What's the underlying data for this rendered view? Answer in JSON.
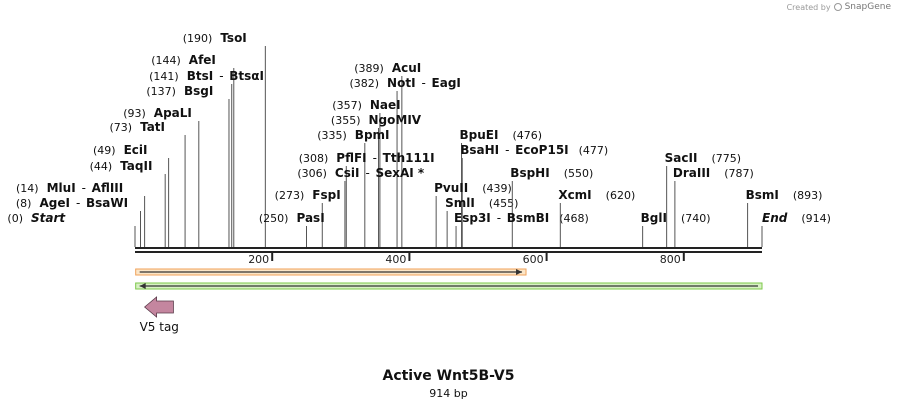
{
  "credit": {
    "prefix": "Created by",
    "brand": "SnapGene"
  },
  "plasmid": {
    "name": "Active Wnt5B-V5",
    "length_label": "914 bp",
    "length": 914
  },
  "sites": [
    {
      "pos": 0,
      "pos_label": "(0)",
      "name": "Start",
      "name2": "",
      "italic": true
    },
    {
      "pos": 8,
      "pos_label": "(8)",
      "name": "AgeI",
      "name2": "BsaWI"
    },
    {
      "pos": 14,
      "pos_label": "(14)",
      "name": "MluI",
      "name2": "AflIII"
    },
    {
      "pos": 44,
      "pos_label": "(44)",
      "name": "TaqII",
      "name2": ""
    },
    {
      "pos": 49,
      "pos_label": "(49)",
      "name": "EciI",
      "name2": ""
    },
    {
      "pos": 73,
      "pos_label": "(73)",
      "name": "TatI",
      "name2": ""
    },
    {
      "pos": 93,
      "pos_label": "(93)",
      "name": "ApaLI",
      "name2": ""
    },
    {
      "pos": 137,
      "pos_label": "(137)",
      "name": "BsgI",
      "name2": ""
    },
    {
      "pos": 141,
      "pos_label": "(141)",
      "name": "BtsI",
      "name2": "BtsαI"
    },
    {
      "pos": 144,
      "pos_label": "(144)",
      "name": "AfeI",
      "name2": ""
    },
    {
      "pos": 190,
      "pos_label": "(190)",
      "name": "TsoI",
      "name2": ""
    },
    {
      "pos": 250,
      "pos_label": "(250)",
      "name": "PasI",
      "name2": ""
    },
    {
      "pos": 273,
      "pos_label": "(273)",
      "name": "FspI",
      "name2": ""
    },
    {
      "pos": 306,
      "pos_label": "(306)",
      "name": "CsiI",
      "name2": "SexAI *"
    },
    {
      "pos": 308,
      "pos_label": "(308)",
      "name": "PflFI",
      "name2": "Tth111I"
    },
    {
      "pos": 335,
      "pos_label": "(335)",
      "name": "BpmI",
      "name2": ""
    },
    {
      "pos": 355,
      "pos_label": "(355)",
      "name": "NgoMIV",
      "name2": ""
    },
    {
      "pos": 357,
      "pos_label": "(357)",
      "name": "NaeI",
      "name2": ""
    },
    {
      "pos": 382,
      "pos_label": "(382)",
      "name": "NotI",
      "name2": "EagI"
    },
    {
      "pos": 389,
      "pos_label": "(389)",
      "name": "AcuI",
      "name2": ""
    },
    {
      "pos": 439,
      "pos_label": "(439)",
      "name": "PvuII",
      "name2": ""
    },
    {
      "pos": 455,
      "pos_label": "(455)",
      "name": "SmlI",
      "name2": ""
    },
    {
      "pos": 468,
      "pos_label": "(468)",
      "name": "Esp3I",
      "name2": "BsmBI"
    },
    {
      "pos": 476,
      "pos_label": "(476)",
      "name": "BpuEI",
      "name2": ""
    },
    {
      "pos": 477,
      "pos_label": "(477)",
      "name": "BsaHI",
      "name2": "EcoP15I"
    },
    {
      "pos": 550,
      "pos_label": "(550)",
      "name": "BspHI",
      "name2": ""
    },
    {
      "pos": 620,
      "pos_label": "(620)",
      "name": "XcmI",
      "name2": ""
    },
    {
      "pos": 740,
      "pos_label": "(740)",
      "name": "BglI",
      "name2": ""
    },
    {
      "pos": 775,
      "pos_label": "(775)",
      "name": "SacII",
      "name2": ""
    },
    {
      "pos": 787,
      "pos_label": "(787)",
      "name": "DraIII",
      "name2": ""
    },
    {
      "pos": 893,
      "pos_label": "(893)",
      "name": "BsmI",
      "name2": ""
    },
    {
      "pos": 914,
      "pos_label": "(914)",
      "name": "End",
      "name2": "",
      "italic": true
    }
  ],
  "ruler": {
    "ticks": [
      200,
      400,
      600,
      800
    ]
  },
  "features": [
    {
      "name": "orange-feature",
      "start": 1,
      "end": 570,
      "direction": "forward",
      "color": "#f0a25a",
      "fill": "#fbe6c8"
    },
    {
      "name": "green-feature",
      "start": 1,
      "end": 914,
      "direction": "reverse",
      "color": "#7cc84a",
      "fill": "#d8f0c4"
    }
  ],
  "annotation": {
    "label": "V5 tag",
    "start": 14,
    "end": 56,
    "direction": "reverse",
    "color": "#c4869f"
  }
}
